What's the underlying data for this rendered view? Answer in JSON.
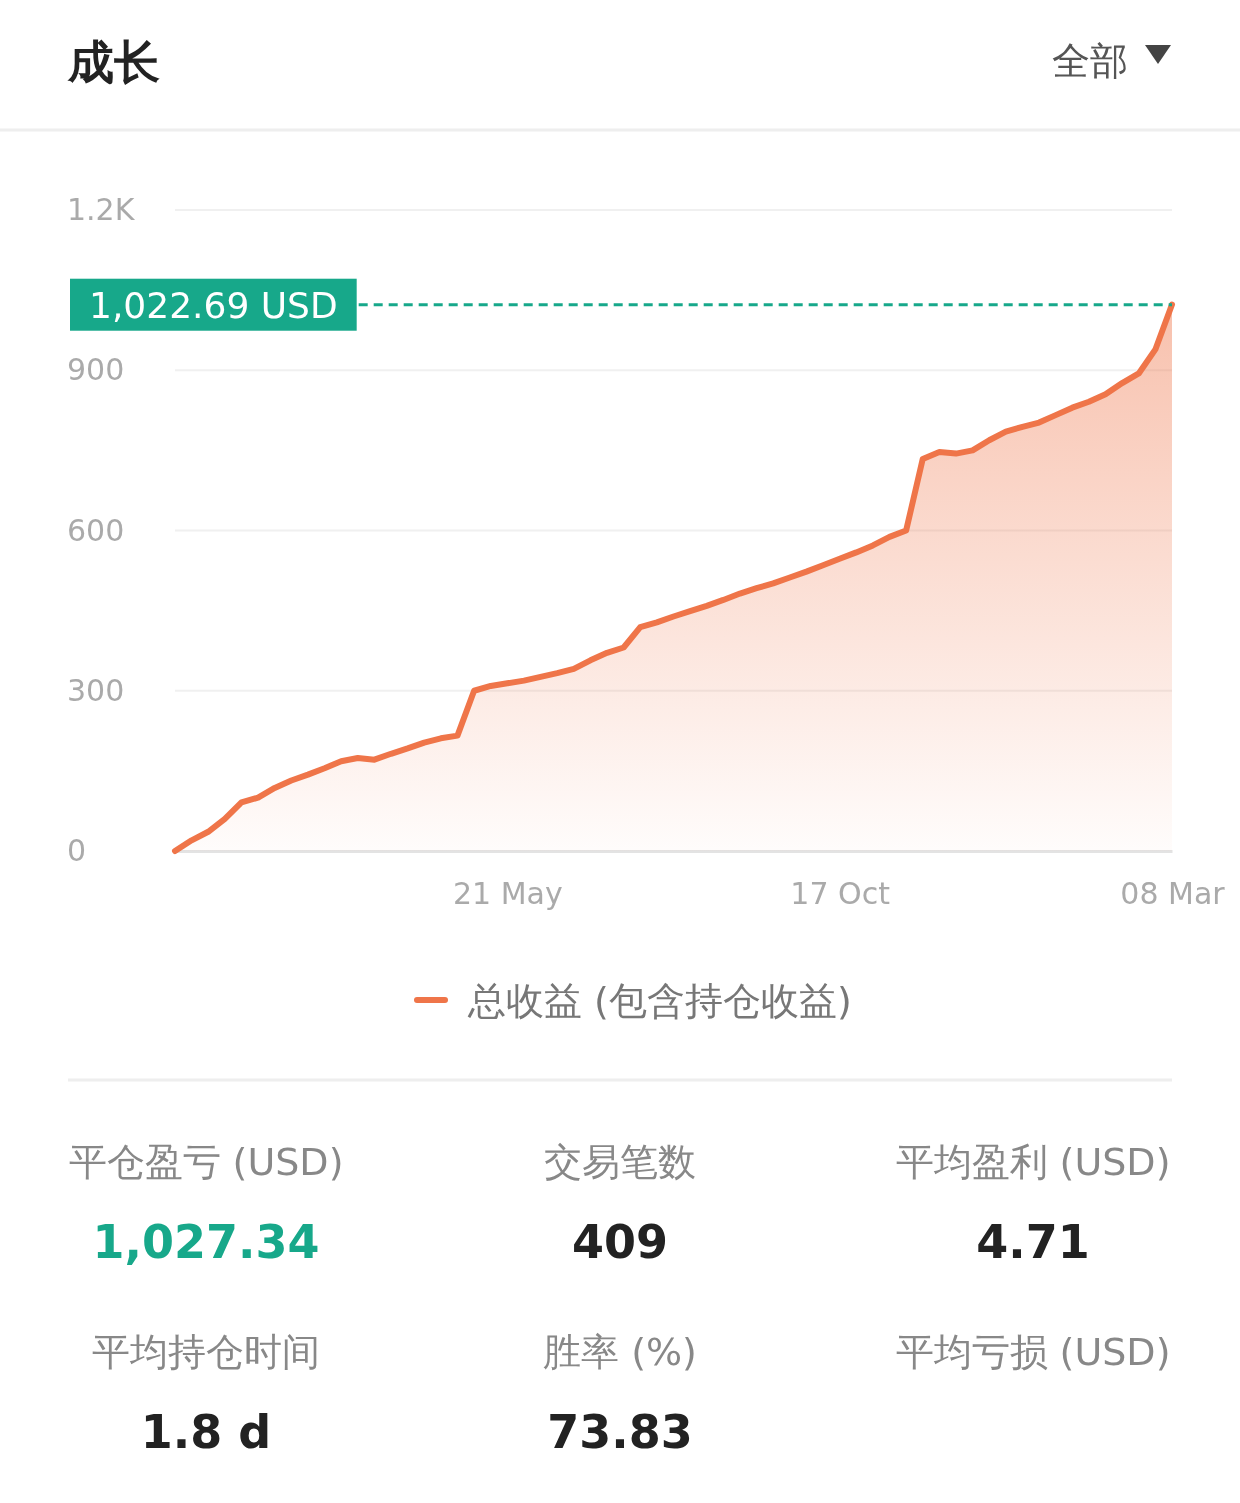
{
  "chart_data": [
    {
      "type": "area",
      "title": "成长",
      "annotations": [
        "全部"
      ],
      "categories": [
        null,
        null,
        null,
        null,
        null,
        null,
        null,
        null,
        null,
        null,
        null,
        null,
        null,
        null,
        null,
        null,
        null,
        null,
        null,
        null,
        "21 May",
        null,
        null,
        null,
        null,
        null,
        null,
        null,
        null,
        null,
        null,
        null,
        null,
        null,
        null,
        null,
        null,
        null,
        null,
        null,
        "17 Oct",
        null,
        null,
        null,
        null,
        null,
        null,
        null,
        null,
        null,
        null,
        null,
        null,
        null,
        null,
        null,
        null,
        null,
        null,
        null,
        "08 Mar"
      ],
      "series": [
        {
          "name": "总收益 (包含持仓收益)",
          "color": "#ef7549",
          "values": [
            0,
            20,
            36,
            60,
            91,
            100,
            118,
            132,
            143,
            155,
            168,
            174,
            171,
            182,
            192,
            203,
            211,
            216,
            300,
            309,
            314,
            319,
            326,
            333,
            341,
            357,
            371,
            381,
            419,
            428,
            439,
            449,
            459,
            470,
            482,
            492,
            501,
            512,
            523,
            535,
            547,
            559,
            572,
            588,
            600,
            734,
            747,
            744,
            750,
            769,
            785,
            794,
            802,
            816,
            830,
            841,
            855,
            876,
            894,
            939,
            1023
          ]
        }
      ],
      "ylim": [
        0,
        1200
      ],
      "yticks": [
        0,
        300,
        600,
        900,
        {
          "value": 1200,
          "label": "1.2K"
        }
      ],
      "grid": "y",
      "legend": "bottom",
      "ref_lines": [
        {
          "axis": "y",
          "value": 1022.69,
          "label": "1,022.69 USD",
          "color": "#17a88a",
          "line_style": "dashed"
        }
      ]
    },
    {
      "type": "other",
      "categories": [
        "平仓盈亏 (USD)",
        "交易笔数",
        "平均盈利 (USD)",
        "平均持仓时间",
        "胜率 (%)",
        "平均亏损 (USD)"
      ],
      "value_labels": [
        "1,027.34",
        "409",
        "4.71",
        "1.8 d",
        "73.83",
        null
      ],
      "colors": [
        "#17a88a",
        "#222222",
        "#222222",
        "#222222",
        "#222222"
      ]
    }
  ]
}
